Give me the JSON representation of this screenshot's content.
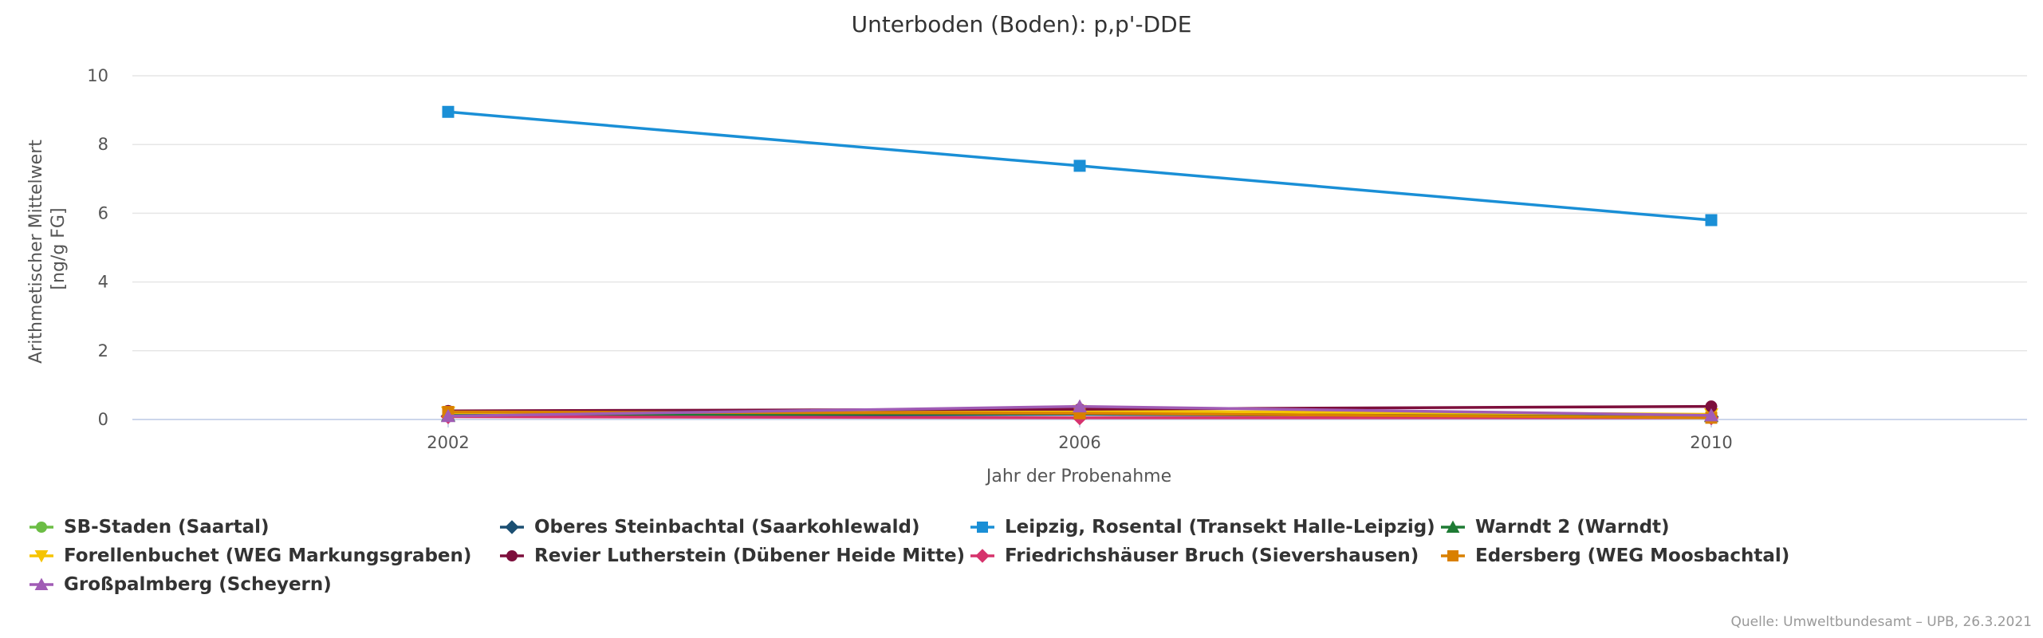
{
  "chart_data": {
    "type": "line",
    "title": "Unterboden (Boden): p,p'-DDE",
    "xlabel": "Jahr der Probenahme",
    "ylabel_lines": [
      "Arithmetischer Mittelwert",
      "[ng/g FG]"
    ],
    "categories": [
      "2002",
      "2006",
      "2010"
    ],
    "xlim": [
      2000,
      2012
    ],
    "ylim": [
      0,
      10
    ],
    "yticks": [
      0,
      2,
      4,
      6,
      8,
      10
    ],
    "grid": true,
    "legend_position": "bottom",
    "series": [
      {
        "name": "SB-Staden (Saartal)",
        "color": "#6cbd45",
        "marker": "circle",
        "x": [
          2002,
          2006,
          2010
        ],
        "values": [
          0.15,
          0.2,
          0.12
        ]
      },
      {
        "name": "Oberes Steinbachtal (Saarkohlewald)",
        "color": "#1b4f72",
        "marker": "diamond",
        "x": [
          2002,
          2006,
          2010
        ],
        "values": [
          0.1,
          0.15,
          0.08
        ]
      },
      {
        "name": "Leipzig, Rosental (Transekt Halle-Leipzig)",
        "color": "#1a8fd6",
        "marker": "square",
        "x": [
          2002,
          2006,
          2010
        ],
        "values": [
          8.95,
          7.38,
          5.8
        ]
      },
      {
        "name": "Warndt 2 (Warndt)",
        "color": "#1e7b34",
        "marker": "triangle",
        "x": [
          2002,
          2006,
          2010
        ],
        "values": [
          0.12,
          0.18,
          0.1
        ]
      },
      {
        "name": "Forellenbuchet (WEG Markungsgraben)",
        "color": "#f5c400",
        "marker": "triangle-down",
        "x": [
          2002,
          2006,
          2010
        ],
        "values": [
          0.2,
          0.25,
          0.15
        ]
      },
      {
        "name": "Revier Lutherstein (Dübener Heide Mitte)",
        "color": "#7d0f3c",
        "marker": "circle",
        "x": [
          2002,
          2006,
          2010
        ],
        "values": [
          0.25,
          0.3,
          0.38
        ]
      },
      {
        "name": "Friedrichshäuser Bruch (Sievershausen)",
        "color": "#d6336c",
        "marker": "diamond",
        "x": [
          2002,
          2006,
          2010
        ],
        "values": [
          0.08,
          0.05,
          0.05
        ]
      },
      {
        "name": "Edersberg (WEG Moosbachtal)",
        "color": "#d98000",
        "marker": "square",
        "x": [
          2002,
          2006,
          2010
        ],
        "values": [
          0.22,
          0.18,
          0.05
        ]
      },
      {
        "name": "Großpalmberg (Scheyern)",
        "color": "#a05cb5",
        "marker": "triangle",
        "x": [
          2002,
          2006,
          2010
        ],
        "values": [
          0.1,
          0.38,
          0.12
        ]
      }
    ]
  },
  "credits": "Quelle: Umweltbundesamt – UPB, 26.3.2021"
}
